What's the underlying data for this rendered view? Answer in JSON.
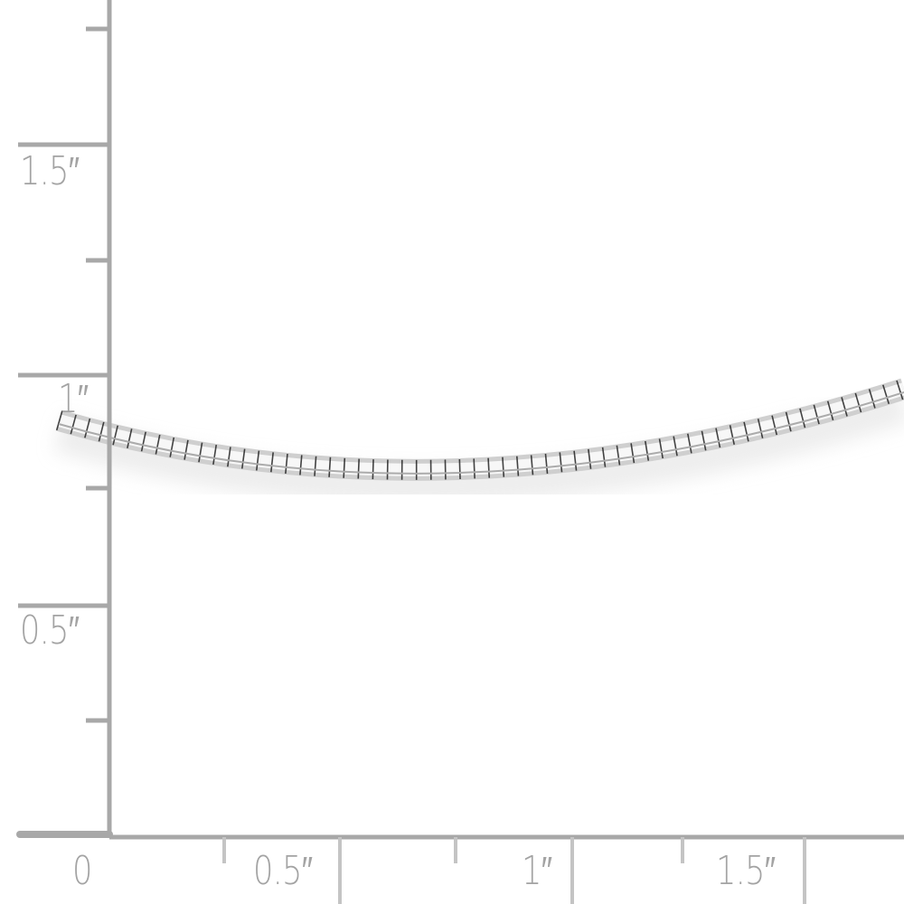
{
  "ruler": {
    "color": "#a8a8a8",
    "unit": "inch",
    "vertical_labels": [
      "1.5″",
      "1″",
      "0.5″"
    ],
    "horizontal_labels": [
      "0",
      "0.5″",
      "1″",
      "1.5″"
    ]
  },
  "product": {
    "type": "omega chain necklace",
    "metal_color": "#d9d9d9"
  }
}
